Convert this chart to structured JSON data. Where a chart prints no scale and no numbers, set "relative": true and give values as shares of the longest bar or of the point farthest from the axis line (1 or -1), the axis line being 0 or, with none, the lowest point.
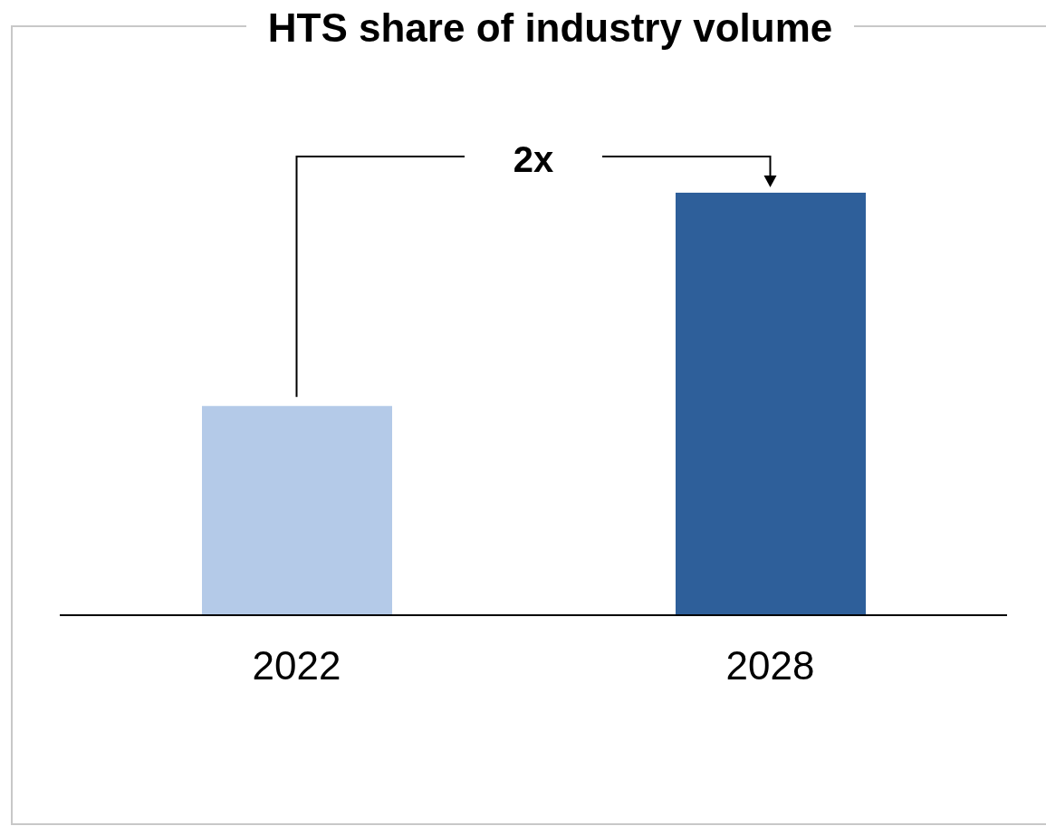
{
  "chart_data": {
    "type": "bar",
    "title": "HTS share of industry volume",
    "categories": [
      "2022",
      "2028"
    ],
    "values": [
      0.495,
      1
    ],
    "colors": [
      "#b4cae8",
      "#2e5f9a"
    ],
    "relative": true,
    "annotations": [
      "2x"
    ]
  }
}
